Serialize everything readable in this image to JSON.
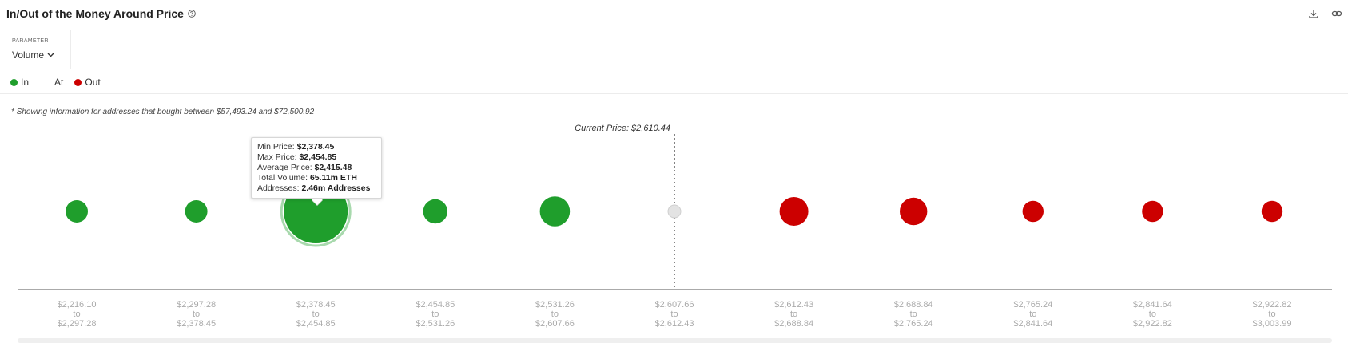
{
  "header": {
    "title": "In/Out of the Money Around Price",
    "icons": [
      "help-icon",
      "download-icon",
      "link-icon"
    ]
  },
  "parameter": {
    "label": "PARAMETER",
    "value": "Volume"
  },
  "legend": [
    {
      "label": "In",
      "color": "#1f9e2c"
    },
    {
      "label": "At",
      "color": ""
    },
    {
      "label": "Out",
      "color": "#cc0000"
    }
  ],
  "note": "* Showing information for addresses that bought between $57,493.24 and $72,500.92",
  "current_price_label": "Current Price: $2,610.44",
  "tooltip": {
    "min_label": "Min Price:",
    "min_value": "$2,378.45",
    "max_label": "Max Price:",
    "max_value": "$2,454.85",
    "avg_label": "Average Price:",
    "avg_value": "$2,415.48",
    "vol_label": "Total Volume:",
    "vol_value": "65.11m ETH",
    "addr_label": "Addresses:",
    "addr_value": "2.46m Addresses"
  },
  "chart_data": {
    "type": "scatter",
    "title": "",
    "current_price": 2610.44,
    "size_metric": "Volume",
    "buckets": [
      {
        "from": "$2,216.10",
        "to_word": "to",
        "to": "$2,297.28",
        "status": "In",
        "size": 0.35
      },
      {
        "from": "$2,297.28",
        "to_word": "to",
        "to": "$2,378.45",
        "status": "In",
        "size": 0.35
      },
      {
        "from": "$2,378.45",
        "to_word": "to",
        "to": "$2,454.85",
        "status": "In",
        "size": 1.0
      },
      {
        "from": "$2,454.85",
        "to_word": "to",
        "to": "$2,531.26",
        "status": "In",
        "size": 0.38
      },
      {
        "from": "$2,531.26",
        "to_word": "to",
        "to": "$2,607.66",
        "status": "In",
        "size": 0.47
      },
      {
        "from": "$2,607.66",
        "to_word": "to",
        "to": "$2,612.43",
        "status": "At",
        "size": 0.2
      },
      {
        "from": "$2,612.43",
        "to_word": "to",
        "to": "$2,688.84",
        "status": "Out",
        "size": 0.45
      },
      {
        "from": "$2,688.84",
        "to_word": "to",
        "to": "$2,765.24",
        "status": "Out",
        "size": 0.43
      },
      {
        "from": "$2,765.24",
        "to_word": "to",
        "to": "$2,841.64",
        "status": "Out",
        "size": 0.33
      },
      {
        "from": "$2,841.64",
        "to_word": "to",
        "to": "$2,922.82",
        "status": "Out",
        "size": 0.33
      },
      {
        "from": "$2,922.82",
        "to_word": "to",
        "to": "$3,003.99",
        "status": "Out",
        "size": 0.33
      }
    ],
    "colors": {
      "In": "#1f9e2c",
      "At": "#e3e3e3",
      "Out": "#cc0000"
    }
  }
}
